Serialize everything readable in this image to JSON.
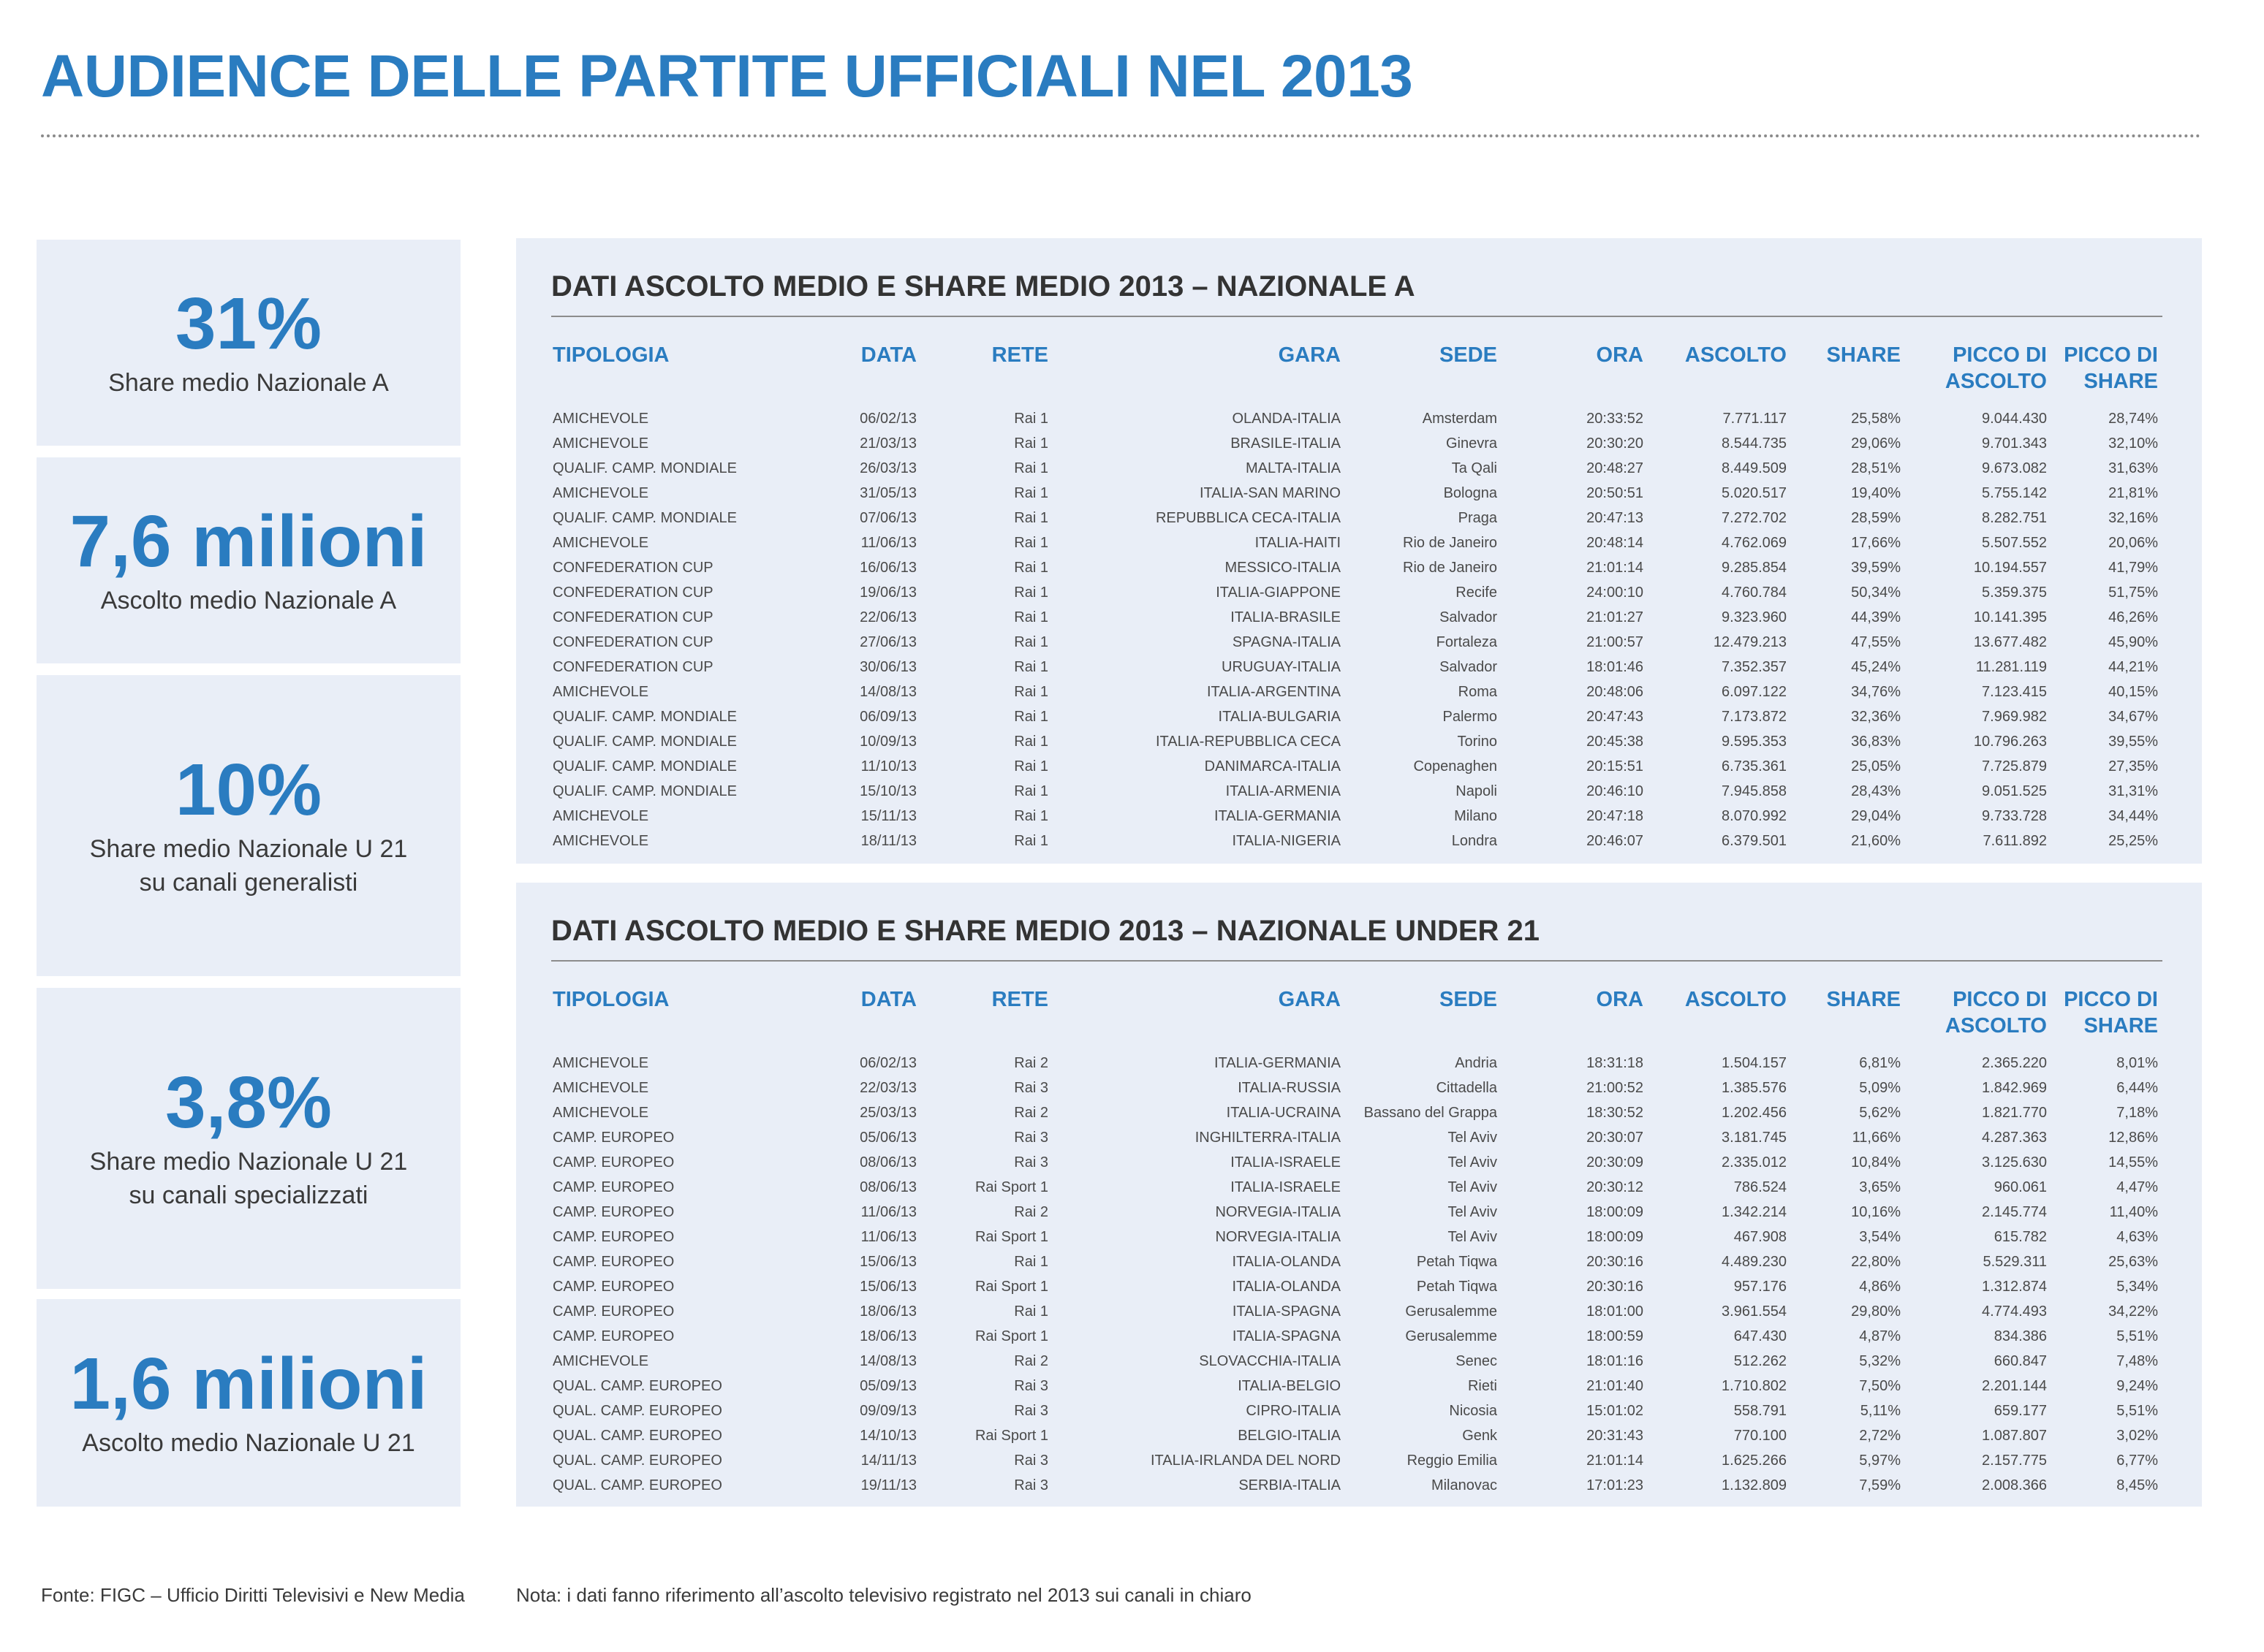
{
  "page": {
    "title": "AUDIENCE DELLE PARTITE UFFICIALI NEL 2013",
    "accent_color": "#2a7cc0",
    "panel_color": "#e9eef7"
  },
  "stats": [
    {
      "value": "31%",
      "label": "Share medio Nazionale A"
    },
    {
      "value": "7,6 milioni",
      "label": "Ascolto medio Nazionale A"
    },
    {
      "value": "10%",
      "label": "Share medio Nazionale U 21\nsu canali generalisti"
    },
    {
      "value": "3,8%",
      "label": "Share medio Nazionale U 21\nsu canali specializzati"
    },
    {
      "value": "1,6 milioni",
      "label": "Ascolto medio Nazionale U 21"
    }
  ],
  "tables": [
    {
      "title": "DATI ASCOLTO MEDIO E SHARE MEDIO 2013 – NAZIONALE A",
      "headers": [
        "TIPOLOGIA",
        "DATA",
        "RETE",
        "GARA",
        "SEDE",
        "ORA",
        "ASCOLTO",
        "SHARE",
        "PICCO DI ASCOLTO",
        "PICCO DI SHARE"
      ],
      "rows": [
        [
          "AMICHEVOLE",
          "06/02/13",
          "Rai 1",
          "OLANDA-ITALIA",
          "Amsterdam",
          "20:33:52",
          "7.771.117",
          "25,58%",
          "9.044.430",
          "28,74%"
        ],
        [
          "AMICHEVOLE",
          "21/03/13",
          "Rai 1",
          "BRASILE-ITALIA",
          "Ginevra",
          "20:30:20",
          "8.544.735",
          "29,06%",
          "9.701.343",
          "32,10%"
        ],
        [
          "QUALIF. CAMP. MONDIALE",
          "26/03/13",
          "Rai 1",
          "MALTA-ITALIA",
          "Ta Qali",
          "20:48:27",
          "8.449.509",
          "28,51%",
          "9.673.082",
          "31,63%"
        ],
        [
          "AMICHEVOLE",
          "31/05/13",
          "Rai 1",
          "ITALIA-SAN MARINO",
          "Bologna",
          "20:50:51",
          "5.020.517",
          "19,40%",
          "5.755.142",
          "21,81%"
        ],
        [
          "QUALIF. CAMP. MONDIALE",
          "07/06/13",
          "Rai 1",
          "REPUBBLICA CECA-ITALIA",
          "Praga",
          "20:47:13",
          "7.272.702",
          "28,59%",
          "8.282.751",
          "32,16%"
        ],
        [
          "AMICHEVOLE",
          "11/06/13",
          "Rai 1",
          "ITALIA-HAITI",
          "Rio de Janeiro",
          "20:48:14",
          "4.762.069",
          "17,66%",
          "5.507.552",
          "20,06%"
        ],
        [
          "CONFEDERATION CUP",
          "16/06/13",
          "Rai 1",
          "MESSICO-ITALIA",
          "Rio de Janeiro",
          "21:01:14",
          "9.285.854",
          "39,59%",
          "10.194.557",
          "41,79%"
        ],
        [
          "CONFEDERATION CUP",
          "19/06/13",
          "Rai 1",
          "ITALIA-GIAPPONE",
          "Recife",
          "24:00:10",
          "4.760.784",
          "50,34%",
          "5.359.375",
          "51,75%"
        ],
        [
          "CONFEDERATION CUP",
          "22/06/13",
          "Rai 1",
          "ITALIA-BRASILE",
          "Salvador",
          "21:01:27",
          "9.323.960",
          "44,39%",
          "10.141.395",
          "46,26%"
        ],
        [
          "CONFEDERATION CUP",
          "27/06/13",
          "Rai 1",
          "SPAGNA-ITALIA",
          "Fortaleza",
          "21:00:57",
          "12.479.213",
          "47,55%",
          "13.677.482",
          "45,90%"
        ],
        [
          "CONFEDERATION CUP",
          "30/06/13",
          "Rai 1",
          "URUGUAY-ITALIA",
          "Salvador",
          "18:01:46",
          "7.352.357",
          "45,24%",
          "11.281.119",
          "44,21%"
        ],
        [
          "AMICHEVOLE",
          "14/08/13",
          "Rai 1",
          "ITALIA-ARGENTINA",
          "Roma",
          "20:48:06",
          "6.097.122",
          "34,76%",
          "7.123.415",
          "40,15%"
        ],
        [
          "QUALIF. CAMP. MONDIALE",
          "06/09/13",
          "Rai 1",
          "ITALIA-BULGARIA",
          "Palermo",
          "20:47:43",
          "7.173.872",
          "32,36%",
          "7.969.982",
          "34,67%"
        ],
        [
          "QUALIF. CAMP. MONDIALE",
          "10/09/13",
          "Rai 1",
          "ITALIA-REPUBBLICA CECA",
          "Torino",
          "20:45:38",
          "9.595.353",
          "36,83%",
          "10.796.263",
          "39,55%"
        ],
        [
          "QUALIF. CAMP. MONDIALE",
          "11/10/13",
          "Rai 1",
          "DANIMARCA-ITALIA",
          "Copenaghen",
          "20:15:51",
          "6.735.361",
          "25,05%",
          "7.725.879",
          "27,35%"
        ],
        [
          "QUALIF. CAMP. MONDIALE",
          "15/10/13",
          "Rai 1",
          "ITALIA-ARMENIA",
          "Napoli",
          "20:46:10",
          "7.945.858",
          "28,43%",
          "9.051.525",
          "31,31%"
        ],
        [
          "AMICHEVOLE",
          "15/11/13",
          "Rai 1",
          "ITALIA-GERMANIA",
          "Milano",
          "20:47:18",
          "8.070.992",
          "29,04%",
          "9.733.728",
          "34,44%"
        ],
        [
          "AMICHEVOLE",
          "18/11/13",
          "Rai 1",
          "ITALIA-NIGERIA",
          "Londra",
          "20:46:07",
          "6.379.501",
          "21,60%",
          "7.611.892",
          "25,25%"
        ]
      ]
    },
    {
      "title": "DATI ASCOLTO MEDIO E SHARE MEDIO 2013 – NAZIONALE UNDER 21",
      "headers": [
        "TIPOLOGIA",
        "DATA",
        "RETE",
        "GARA",
        "SEDE",
        "ORA",
        "ASCOLTO",
        "SHARE",
        "PICCO DI ASCOLTO",
        "PICCO DI SHARE"
      ],
      "rows": [
        [
          "AMICHEVOLE",
          "06/02/13",
          "Rai 2",
          "ITALIA-GERMANIA",
          "Andria",
          "18:31:18",
          "1.504.157",
          "6,81%",
          "2.365.220",
          "8,01%"
        ],
        [
          "AMICHEVOLE",
          "22/03/13",
          "Rai 3",
          "ITALIA-RUSSIA",
          "Cittadella",
          "21:00:52",
          "1.385.576",
          "5,09%",
          "1.842.969",
          "6,44%"
        ],
        [
          "AMICHEVOLE",
          "25/03/13",
          "Rai 2",
          "ITALIA-UCRAINA",
          "Bassano del Grappa",
          "18:30:52",
          "1.202.456",
          "5,62%",
          "1.821.770",
          "7,18%"
        ],
        [
          "CAMP. EUROPEO",
          "05/06/13",
          "Rai 3",
          "INGHILTERRA-ITALIA",
          "Tel Aviv",
          "20:30:07",
          "3.181.745",
          "11,66%",
          "4.287.363",
          "12,86%"
        ],
        [
          "CAMP. EUROPEO",
          "08/06/13",
          "Rai 3",
          "ITALIA-ISRAELE",
          "Tel Aviv",
          "20:30:09",
          "2.335.012",
          "10,84%",
          "3.125.630",
          "14,55%"
        ],
        [
          "CAMP. EUROPEO",
          "08/06/13",
          "Rai Sport 1",
          "ITALIA-ISRAELE",
          "Tel Aviv",
          "20:30:12",
          "786.524",
          "3,65%",
          "960.061",
          "4,47%"
        ],
        [
          "CAMP. EUROPEO",
          "11/06/13",
          "Rai 2",
          "NORVEGIA-ITALIA",
          "Tel Aviv",
          "18:00:09",
          "1.342.214",
          "10,16%",
          "2.145.774",
          "11,40%"
        ],
        [
          "CAMP. EUROPEO",
          "11/06/13",
          "Rai Sport 1",
          "NORVEGIA-ITALIA",
          "Tel Aviv",
          "18:00:09",
          "467.908",
          "3,54%",
          "615.782",
          "4,63%"
        ],
        [
          "CAMP. EUROPEO",
          "15/06/13",
          "Rai 1",
          "ITALIA-OLANDA",
          "Petah Tiqwa",
          "20:30:16",
          "4.489.230",
          "22,80%",
          "5.529.311",
          "25,63%"
        ],
        [
          "CAMP. EUROPEO",
          "15/06/13",
          "Rai Sport 1",
          "ITALIA-OLANDA",
          "Petah Tiqwa",
          "20:30:16",
          "957.176",
          "4,86%",
          "1.312.874",
          "5,34%"
        ],
        [
          "CAMP. EUROPEO",
          "18/06/13",
          "Rai 1",
          "ITALIA-SPAGNA",
          "Gerusalemme",
          "18:01:00",
          "3.961.554",
          "29,80%",
          "4.774.493",
          "34,22%"
        ],
        [
          "CAMP. EUROPEO",
          "18/06/13",
          "Rai Sport 1",
          "ITALIA-SPAGNA",
          "Gerusalemme",
          "18:00:59",
          "647.430",
          "4,87%",
          "834.386",
          "5,51%"
        ],
        [
          "AMICHEVOLE",
          "14/08/13",
          "Rai 2",
          "SLOVACCHIA-ITALIA",
          "Senec",
          "18:01:16",
          "512.262",
          "5,32%",
          "660.847",
          "7,48%"
        ],
        [
          "QUAL. CAMP. EUROPEO",
          "05/09/13",
          "Rai 3",
          "ITALIA-BELGIO",
          "Rieti",
          "21:01:40",
          "1.710.802",
          "7,50%",
          "2.201.144",
          "9,24%"
        ],
        [
          "QUAL. CAMP. EUROPEO",
          "09/09/13",
          "Rai 3",
          "CIPRO-ITALIA",
          "Nicosia",
          "15:01:02",
          "558.791",
          "5,11%",
          "659.177",
          "5,51%"
        ],
        [
          "QUAL. CAMP. EUROPEO",
          "14/10/13",
          "Rai Sport 1",
          "BELGIO-ITALIA",
          "Genk",
          "20:31:43",
          "770.100",
          "2,72%",
          "1.087.807",
          "3,02%"
        ],
        [
          "QUAL. CAMP. EUROPEO",
          "14/11/13",
          "Rai 3",
          "ITALIA-IRLANDA DEL NORD",
          "Reggio Emilia",
          "21:01:14",
          "1.625.266",
          "5,97%",
          "2.157.775",
          "6,77%"
        ],
        [
          "QUAL. CAMP. EUROPEO",
          "19/11/13",
          "Rai 3",
          "SERBIA-ITALIA",
          "Milanovac",
          "17:01:23",
          "1.132.809",
          "7,59%",
          "2.008.366",
          "8,45%"
        ]
      ]
    }
  ],
  "footer": {
    "source": "Fonte: FIGC – Ufficio Diritti Televisivi e New Media",
    "note": "Nota: i dati fanno riferimento all’ascolto televisivo registrato nel 2013 sui canali in chiaro"
  }
}
